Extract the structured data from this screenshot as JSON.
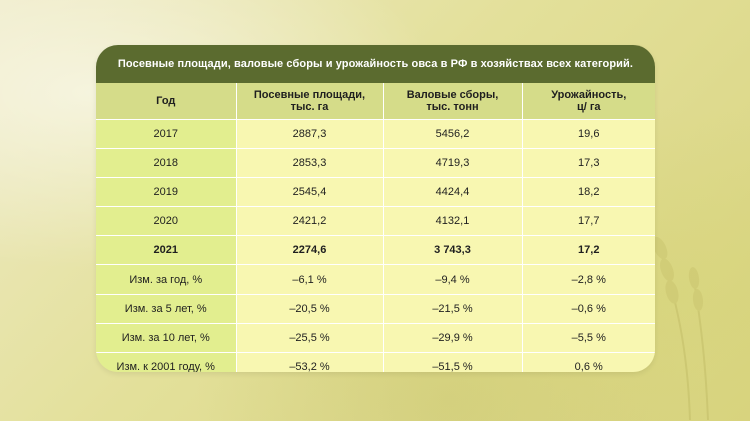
{
  "title": "Посевные площади, валовые сборы и урожайность овса в РФ в хозяйствах всех категорий.",
  "headers": [
    [
      "Год"
    ],
    [
      "Посевные площади,",
      "тыс. га"
    ],
    [
      "Валовые сборы,",
      "тыс. тонн"
    ],
    [
      "Урожайность,",
      "ц/ га"
    ]
  ],
  "rows": [
    [
      "2017",
      "2887,3",
      "5456,2",
      "19,6"
    ],
    [
      "2018",
      "2853,3",
      "4719,3",
      "17,3"
    ],
    [
      "2019",
      "2545,4",
      "4424,4",
      "18,2"
    ],
    [
      "2020",
      "2421,2",
      "4132,1",
      "17,7"
    ],
    [
      "2021",
      "2274,6",
      "3 743,3",
      "17,2"
    ],
    [
      "Изм. за год, %",
      "–6,1 %",
      "–9,4 %",
      "–2,8 %"
    ],
    [
      "Изм. за 5 лет, %",
      "–20,5 %",
      "–21,5 %",
      "–0,6 %"
    ],
    [
      "Изм. за 10 лет, %",
      "–25,5 %",
      "–29,9 %",
      "–5,5 %"
    ],
    [
      "Изм. к 2001 году, %",
      "–53,2 %",
      "–51,5 %",
      "0,6 %"
    ]
  ]
}
